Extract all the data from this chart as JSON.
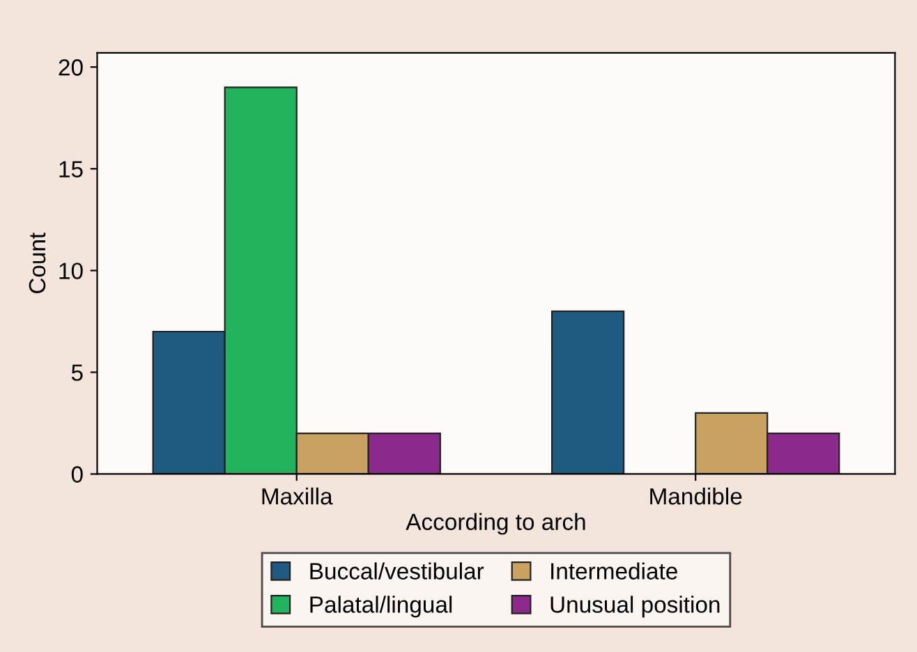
{
  "chart_data": {
    "type": "bar",
    "xlabel": "According to arch",
    "ylabel": "Count",
    "categories": [
      "Maxilla",
      "Mandible"
    ],
    "series": [
      {
        "name": "Buccal/vestibular",
        "color": "#1f5a80",
        "values": [
          7,
          8
        ]
      },
      {
        "name": "Palatal/lingual",
        "color": "#22b35c",
        "values": [
          19,
          null
        ]
      },
      {
        "name": "Intermediate",
        "color": "#c9a262",
        "values": [
          2,
          3
        ]
      },
      {
        "name": "Unusual position",
        "color": "#8b2a8c",
        "values": [
          2,
          2
        ]
      }
    ],
    "ylim": [
      0,
      20.7
    ],
    "yticks": [
      0,
      5,
      10,
      15,
      20
    ],
    "grid": false,
    "legend": "bottom"
  }
}
